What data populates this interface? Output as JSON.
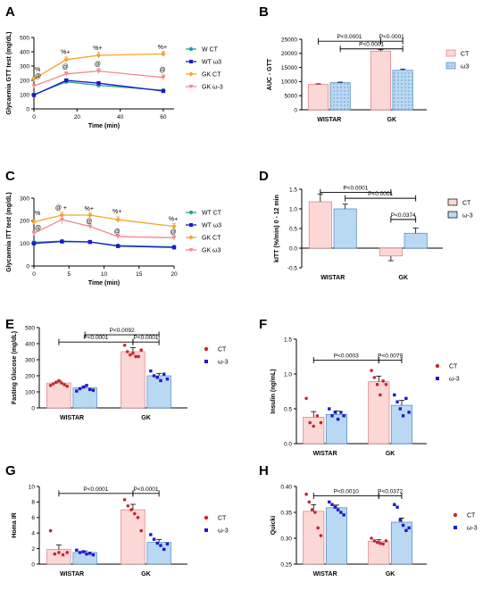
{
  "colors": {
    "wt_ct": "#27a38a",
    "wt_w3": "#1a1acc",
    "gk_ct": "#f4a42b",
    "gk_w3": "#f08a8f",
    "ct_bar": "#fbd7d6",
    "w3_bar": "#b9d8f2",
    "ct_dot": "#c4282e",
    "w3_dot": "#1a1acc",
    "ct_edge": "#e07a80",
    "w3_edge": "#4a86c8"
  },
  "chart_data": [
    {
      "panel": "A",
      "type": "line",
      "xlabel": "Time (min)",
      "ylabel": "Glycaemia GTT test (mg/dL)",
      "xlim": [
        0,
        65
      ],
      "ylim": [
        0,
        500
      ],
      "x_ticks": [
        "0",
        "20",
        "40",
        "60"
      ],
      "y_ticks": [
        "0",
        "100",
        "200",
        "300",
        "400",
        "500"
      ],
      "x": [
        0,
        15,
        30,
        60
      ],
      "series": [
        {
          "name": "W CT",
          "key": "wt_ct",
          "values": [
            100,
            190,
            165,
            130
          ],
          "err": [
            8,
            8,
            8,
            6
          ]
        },
        {
          "name": "WT ω3",
          "key": "wt_w3",
          "values": [
            97,
            200,
            180,
            125
          ],
          "err": [
            8,
            8,
            10,
            6
          ]
        },
        {
          "name": "GK CT",
          "key": "gk_ct",
          "values": [
            210,
            345,
            375,
            385
          ],
          "err": [
            12,
            18,
            20,
            18
          ]
        },
        {
          "name": "GK ω-3",
          "key": "gk_w3",
          "values": [
            160,
            245,
            265,
            220
          ],
          "err": [
            12,
            15,
            18,
            18
          ]
        }
      ],
      "annotations": [
        {
          "x": 0,
          "y": 262,
          "text": "%"
        },
        {
          "x": 0,
          "y": 217,
          "text": "@"
        },
        {
          "x": 15,
          "y": 385,
          "text": "%+"
        },
        {
          "x": 15,
          "y": 280,
          "text": "@"
        },
        {
          "x": 30,
          "y": 412,
          "text": "%+"
        },
        {
          "x": 30,
          "y": 300,
          "text": "@"
        },
        {
          "x": 60,
          "y": 420,
          "text": "%+"
        },
        {
          "x": 60,
          "y": 260,
          "text": "@"
        }
      ]
    },
    {
      "panel": "B",
      "type": "bar",
      "ylabel": "AUC - GTT",
      "ylim": [
        0,
        25000
      ],
      "y_ticks": [
        "0",
        "5000",
        "10000",
        "15000",
        "20000",
        "25000"
      ],
      "categories": [
        "WISTAR",
        "GK"
      ],
      "series": [
        {
          "name": "CT",
          "key": "ct",
          "values": [
            9000,
            20800
          ],
          "err": [
            200,
            500
          ]
        },
        {
          "name": "ω3",
          "key": "w3",
          "values": [
            9600,
            14000
          ],
          "err": [
            200,
            400
          ]
        }
      ],
      "comparisons": [
        {
          "label": "P<0.0001",
          "y": 24300,
          "x1": 0,
          "x2": 2
        },
        {
          "label": "P<0.0001",
          "y": 24300,
          "x1": 2,
          "x2": 3
        },
        {
          "label": "P<0.0001",
          "y": 21600,
          "x1": 1,
          "x2": 3
        }
      ]
    },
    {
      "panel": "C",
      "type": "line",
      "xlabel": "Time (min)",
      "ylabel": "Glycaemia ITT test (mg/dL)",
      "xlim": [
        0,
        20
      ],
      "ylim": [
        0,
        300
      ],
      "x_ticks": [
        "0",
        "5",
        "10",
        "15",
        "20"
      ],
      "y_ticks": [
        "0",
        "100",
        "200",
        "300"
      ],
      "x": [
        0,
        4,
        8,
        12,
        20
      ],
      "series": [
        {
          "name": "WT CT",
          "key": "wt_ct",
          "values": [
            105,
            110,
            107,
            90,
            85
          ],
          "err": [
            4,
            4,
            4,
            4,
            4
          ]
        },
        {
          "name": "WT ω3",
          "key": "wt_w3",
          "values": [
            100,
            108,
            106,
            88,
            82
          ],
          "err": [
            4,
            4,
            4,
            4,
            4
          ]
        },
        {
          "name": "GK CT",
          "key": "gk_ct",
          "values": [
            195,
            225,
            225,
            205,
            175
          ],
          "err": [
            10,
            12,
            12,
            12,
            12
          ]
        },
        {
          "name": "GK ω3",
          "key": "gk_w3",
          "values": [
            145,
            205,
            175,
            130,
            125
          ],
          "err": [
            10,
            20,
            12,
            10,
            10
          ]
        }
      ],
      "annotations": [
        {
          "x": 0,
          "y": 225,
          "text": "%"
        },
        {
          "x": 0,
          "y": 160,
          "text": "@"
        },
        {
          "x": 4,
          "y": 248,
          "text": "@ +"
        },
        {
          "x": 8,
          "y": 245,
          "text": "%+"
        },
        {
          "x": 8,
          "y": 190,
          "text": "@"
        },
        {
          "x": 12,
          "y": 232,
          "text": "%+"
        },
        {
          "x": 12,
          "y": 145,
          "text": "@"
        },
        {
          "x": 20,
          "y": 200,
          "text": "%+"
        },
        {
          "x": 20,
          "y": 142,
          "text": "@"
        }
      ]
    },
    {
      "panel": "D",
      "type": "bar",
      "ylabel": "kITT (%/min) 0 - 12 min",
      "ylim": [
        -0.5,
        1.5
      ],
      "y_ticks": [
        "-0.5",
        "0.0",
        "0.5",
        "1.0",
        "1.5"
      ],
      "categories": [
        "WISTAR",
        "GK"
      ],
      "series": [
        {
          "name": "CT",
          "key": "ct",
          "values": [
            1.18,
            -0.2
          ],
          "err": [
            0.2,
            0.12
          ]
        },
        {
          "name": "ω-3",
          "key": "w3",
          "values": [
            1.0,
            0.38
          ],
          "err": [
            0.12,
            0.13
          ]
        }
      ],
      "comparisons": [
        {
          "label": "P<0.0001",
          "y": 1.42,
          "x1": 0,
          "x2": 2
        },
        {
          "label": "P<0.0001",
          "y": 1.27,
          "x1": 1,
          "x2": 3
        },
        {
          "label": "P<0.0374",
          "y": 0.73,
          "x1": 2,
          "x2": 3
        }
      ]
    },
    {
      "panel": "E",
      "type": "bar",
      "ylabel": "Fasting Glucose (mg/dL)",
      "ylim": [
        0,
        500
      ],
      "y_ticks": [
        "0",
        "100",
        "200",
        "300",
        "400",
        "500"
      ],
      "categories": [
        "WISTAR",
        "GK"
      ],
      "series": [
        {
          "name": "CT",
          "key": "ct",
          "values": [
            155,
            350
          ],
          "err": [
            12,
            25
          ],
          "points": [
            [
              140,
              150,
              160,
              170,
              155,
              145,
              135
            ],
            [
              390,
              350,
              330,
              340,
              320,
              320,
              360
            ]
          ]
        },
        {
          "name": "ω-3",
          "key": "w3",
          "values": [
            125,
            200
          ],
          "err": [
            12,
            15
          ],
          "points": [
            [
              105,
              120,
              130,
              140,
              115,
              110
            ],
            [
              230,
              200,
              190,
              170,
              210,
              180
            ]
          ]
        }
      ],
      "comparisons": [
        {
          "label": "P<0.0092",
          "y": 455,
          "x1": 1,
          "x2": 3
        },
        {
          "label": "P<0.0001",
          "y": 410,
          "x1": 0,
          "x2": 2
        },
        {
          "label": "P<0.0001",
          "y": 410,
          "x1": 2,
          "x2": 3
        }
      ]
    },
    {
      "panel": "F",
      "type": "bar",
      "ylabel": "Insulin (ng/mL)",
      "ylim": [
        0,
        1.5
      ],
      "y_ticks": [
        "0.0",
        "0.5",
        "1.0",
        "1.5"
      ],
      "categories": [
        "WISTAR",
        "GK"
      ],
      "series": [
        {
          "name": "CT",
          "key": "ct",
          "values": [
            0.38,
            0.89
          ],
          "err": [
            0.08,
            0.08
          ],
          "points": [
            [
              0.65,
              0.3,
              0.25,
              0.4,
              0.3
            ],
            [
              1.05,
              0.95,
              0.85,
              0.7,
              0.9,
              0.85
            ]
          ]
        },
        {
          "name": "ω-3",
          "key": "w3",
          "values": [
            0.42,
            0.55
          ],
          "err": [
            0.05,
            0.07
          ],
          "points": [
            [
              0.5,
              0.4,
              0.45,
              0.35,
              0.45,
              0.4
            ],
            [
              0.7,
              0.6,
              0.5,
              0.4,
              0.65,
              0.45
            ]
          ]
        }
      ],
      "comparisons": [
        {
          "label": "P<0.0003",
          "y": 1.2,
          "x1": 0,
          "x2": 2
        },
        {
          "label": "P<0.0079",
          "y": 1.2,
          "x1": 2,
          "x2": 3
        }
      ]
    },
    {
      "panel": "G",
      "type": "bar",
      "ylabel": "Homa IR",
      "ylim": [
        0,
        10
      ],
      "y_ticks": [
        "0",
        "2",
        "4",
        "6",
        "8",
        "10"
      ],
      "categories": [
        "WISTAR",
        "GK"
      ],
      "series": [
        {
          "name": "CT",
          "key": "ct",
          "values": [
            1.9,
            7.0
          ],
          "err": [
            0.55,
            0.7
          ],
          "points": [
            [
              4.3,
              1.3,
              1.5,
              1.2,
              1.5
            ],
            [
              8.3,
              7.5,
              7.0,
              6.5,
              6.0,
              4.3
            ]
          ]
        },
        {
          "name": "ω-3",
          "key": "w3",
          "values": [
            1.5,
            2.8
          ],
          "err": [
            0.2,
            0.35
          ],
          "points": [
            [
              1.8,
              1.5,
              1.6,
              1.3,
              1.4,
              1.2
            ],
            [
              3.8,
              3.2,
              2.7,
              2.4,
              1.9,
              2.6
            ]
          ]
        }
      ],
      "comparisons": [
        {
          "label": "P<0.0001",
          "y": 9.1,
          "x1": 0,
          "x2": 2
        },
        {
          "label": "P<0.0001",
          "y": 9.1,
          "x1": 2,
          "x2": 3
        }
      ]
    },
    {
      "panel": "H",
      "type": "bar",
      "ylabel": "Quicki",
      "ylim": [
        0.25,
        0.4
      ],
      "y_ticks": [
        "0.25",
        "0.30",
        "0.35",
        "0.40"
      ],
      "categories": [
        "WISTAR",
        "GK"
      ],
      "series": [
        {
          "name": "CT",
          "key": "ct",
          "values": [
            0.352,
            0.294
          ],
          "err": [
            0.013,
            0.003
          ],
          "points": [
            [
              0.385,
              0.37,
              0.355,
              0.35,
              0.32,
              0.305
            ],
            [
              0.3,
              0.295,
              0.292,
              0.29,
              0.289,
              0.295
            ]
          ]
        },
        {
          "name": "ω-3",
          "key": "w3",
          "values": [
            0.359,
            0.331
          ],
          "err": [
            0.005,
            0.008
          ],
          "points": [
            [
              0.37,
              0.365,
              0.36,
              0.355,
              0.35,
              0.345
            ],
            [
              0.365,
              0.36,
              0.335,
              0.325,
              0.315,
              0.32
            ]
          ]
        }
      ],
      "comparisons": [
        {
          "label": "P<0.0010",
          "y": 0.382,
          "x1": 0,
          "x2": 2
        },
        {
          "label": "P<0.0372",
          "y": 0.382,
          "x1": 2,
          "x2": 3
        }
      ]
    }
  ]
}
